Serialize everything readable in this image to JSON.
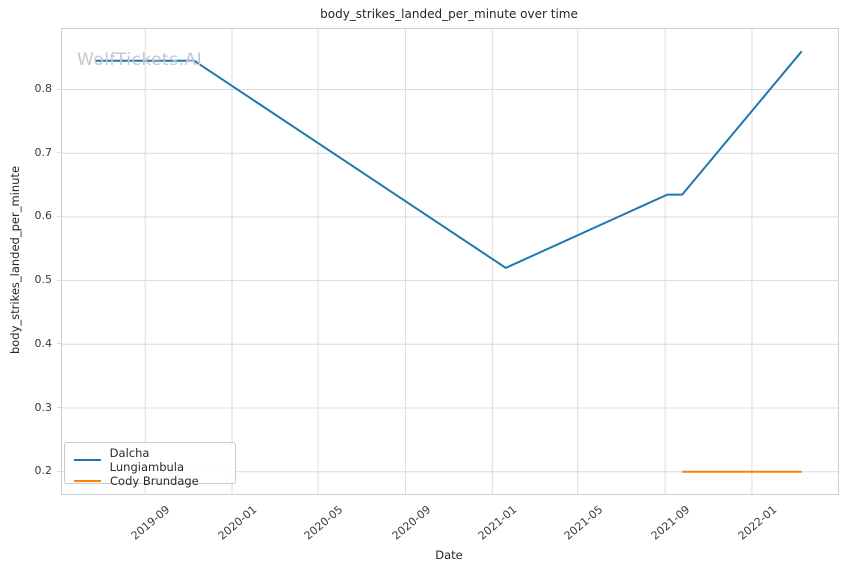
{
  "watermark": "WolfTickets.AI",
  "chart_data": {
    "type": "line",
    "title": "body_strikes_landed_per_minute over time",
    "xlabel": "Date",
    "ylabel": "body_strikes_landed_per_minute",
    "grid": true,
    "legend_position": "lower left",
    "x_ticks": [
      {
        "label": "2019-09",
        "date": "2019-09-01"
      },
      {
        "label": "2020-01",
        "date": "2020-01-01"
      },
      {
        "label": "2020-05",
        "date": "2020-05-01"
      },
      {
        "label": "2020-09",
        "date": "2020-09-01"
      },
      {
        "label": "2021-01",
        "date": "2021-01-01"
      },
      {
        "label": "2021-05",
        "date": "2021-05-01"
      },
      {
        "label": "2021-09",
        "date": "2021-09-01"
      },
      {
        "label": "2022-01",
        "date": "2022-01-01"
      }
    ],
    "y_ticks": [
      0.2,
      0.3,
      0.4,
      0.5,
      0.6,
      0.7,
      0.8
    ],
    "ylim": [
      0.165,
      0.895
    ],
    "xlim": [
      "2019-05-07",
      "2022-05-02"
    ],
    "series": [
      {
        "name": "Dalcha Lungiambula",
        "color": "#1f77b4",
        "points": [
          [
            "2019-06-22",
            0.845
          ],
          [
            "2019-11-09",
            0.845
          ],
          [
            "2021-01-20",
            0.52
          ],
          [
            "2021-09-04",
            0.635
          ],
          [
            "2021-09-25",
            0.635
          ],
          [
            "2022-03-12",
            0.86
          ]
        ]
      },
      {
        "name": "Cody Brundage",
        "color": "#ff7f0e",
        "points": [
          [
            "2021-09-25",
            0.2
          ],
          [
            "2022-03-12",
            0.2
          ]
        ]
      }
    ],
    "style": {
      "grid_color": "#dcdcdc",
      "spine_color": "#cfcfcf",
      "line_width": 2
    }
  }
}
